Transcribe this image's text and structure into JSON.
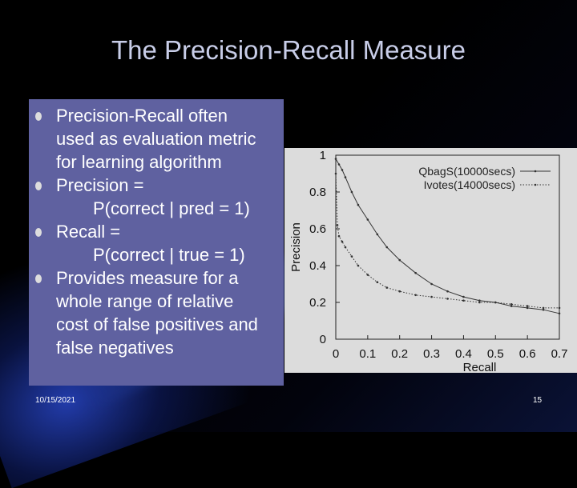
{
  "slide": {
    "title": "The Precision-Recall Measure",
    "bullets": [
      {
        "lines": [
          "Precision-Recall often",
          "used as evaluation metric",
          "for learning algorithm"
        ]
      },
      {
        "lines": [
          "Precision ="
        ],
        "indent": "P(correct | pred = 1)"
      },
      {
        "lines": [
          "Recall ="
        ],
        "indent": "P(correct | true = 1)"
      },
      {
        "lines": [
          "Provides measure for a",
          "whole range of relative",
          "cost of false positives and",
          "false negatives"
        ]
      }
    ],
    "footer_date": "10/15/2021",
    "slide_number": "15"
  },
  "colors": {
    "text_box": "#5f61a0",
    "title": "#c8cde8",
    "chart_bg": "#dcdcdc"
  },
  "chart_data": {
    "type": "line",
    "title": "",
    "xlabel": "Recall",
    "ylabel": "Precision",
    "xlim": [
      0,
      0.7
    ],
    "ylim": [
      0,
      1
    ],
    "x_ticks": [
      "0",
      "0.1",
      "0.2",
      "0.3",
      "0.4",
      "0.5",
      "0.6",
      "0.7"
    ],
    "y_ticks": [
      "0",
      "0.2",
      "0.4",
      "0.6",
      "0.8",
      "1"
    ],
    "legend_position": "top-right",
    "series": [
      {
        "name": "QbagS(10000secs)",
        "style": "solid",
        "x": [
          0,
          0.01,
          0.02,
          0.03,
          0.05,
          0.07,
          0.1,
          0.13,
          0.16,
          0.2,
          0.25,
          0.3,
          0.35,
          0.4,
          0.45,
          0.5,
          0.55,
          0.6,
          0.65,
          0.7
        ],
        "y": [
          0.98,
          0.95,
          0.92,
          0.88,
          0.8,
          0.73,
          0.65,
          0.57,
          0.5,
          0.43,
          0.36,
          0.3,
          0.26,
          0.23,
          0.21,
          0.2,
          0.18,
          0.17,
          0.16,
          0.14
        ]
      },
      {
        "name": "Ivotes(14000secs)",
        "style": "dotted",
        "x": [
          0,
          0.005,
          0.01,
          0.02,
          0.03,
          0.05,
          0.07,
          0.1,
          0.13,
          0.16,
          0.2,
          0.25,
          0.3,
          0.35,
          0.4,
          0.45,
          0.5,
          0.55,
          0.6,
          0.65,
          0.7
        ],
        "y": [
          0.9,
          0.62,
          0.56,
          0.53,
          0.5,
          0.45,
          0.4,
          0.35,
          0.31,
          0.28,
          0.26,
          0.24,
          0.23,
          0.22,
          0.21,
          0.2,
          0.2,
          0.19,
          0.18,
          0.17,
          0.17
        ]
      }
    ]
  }
}
